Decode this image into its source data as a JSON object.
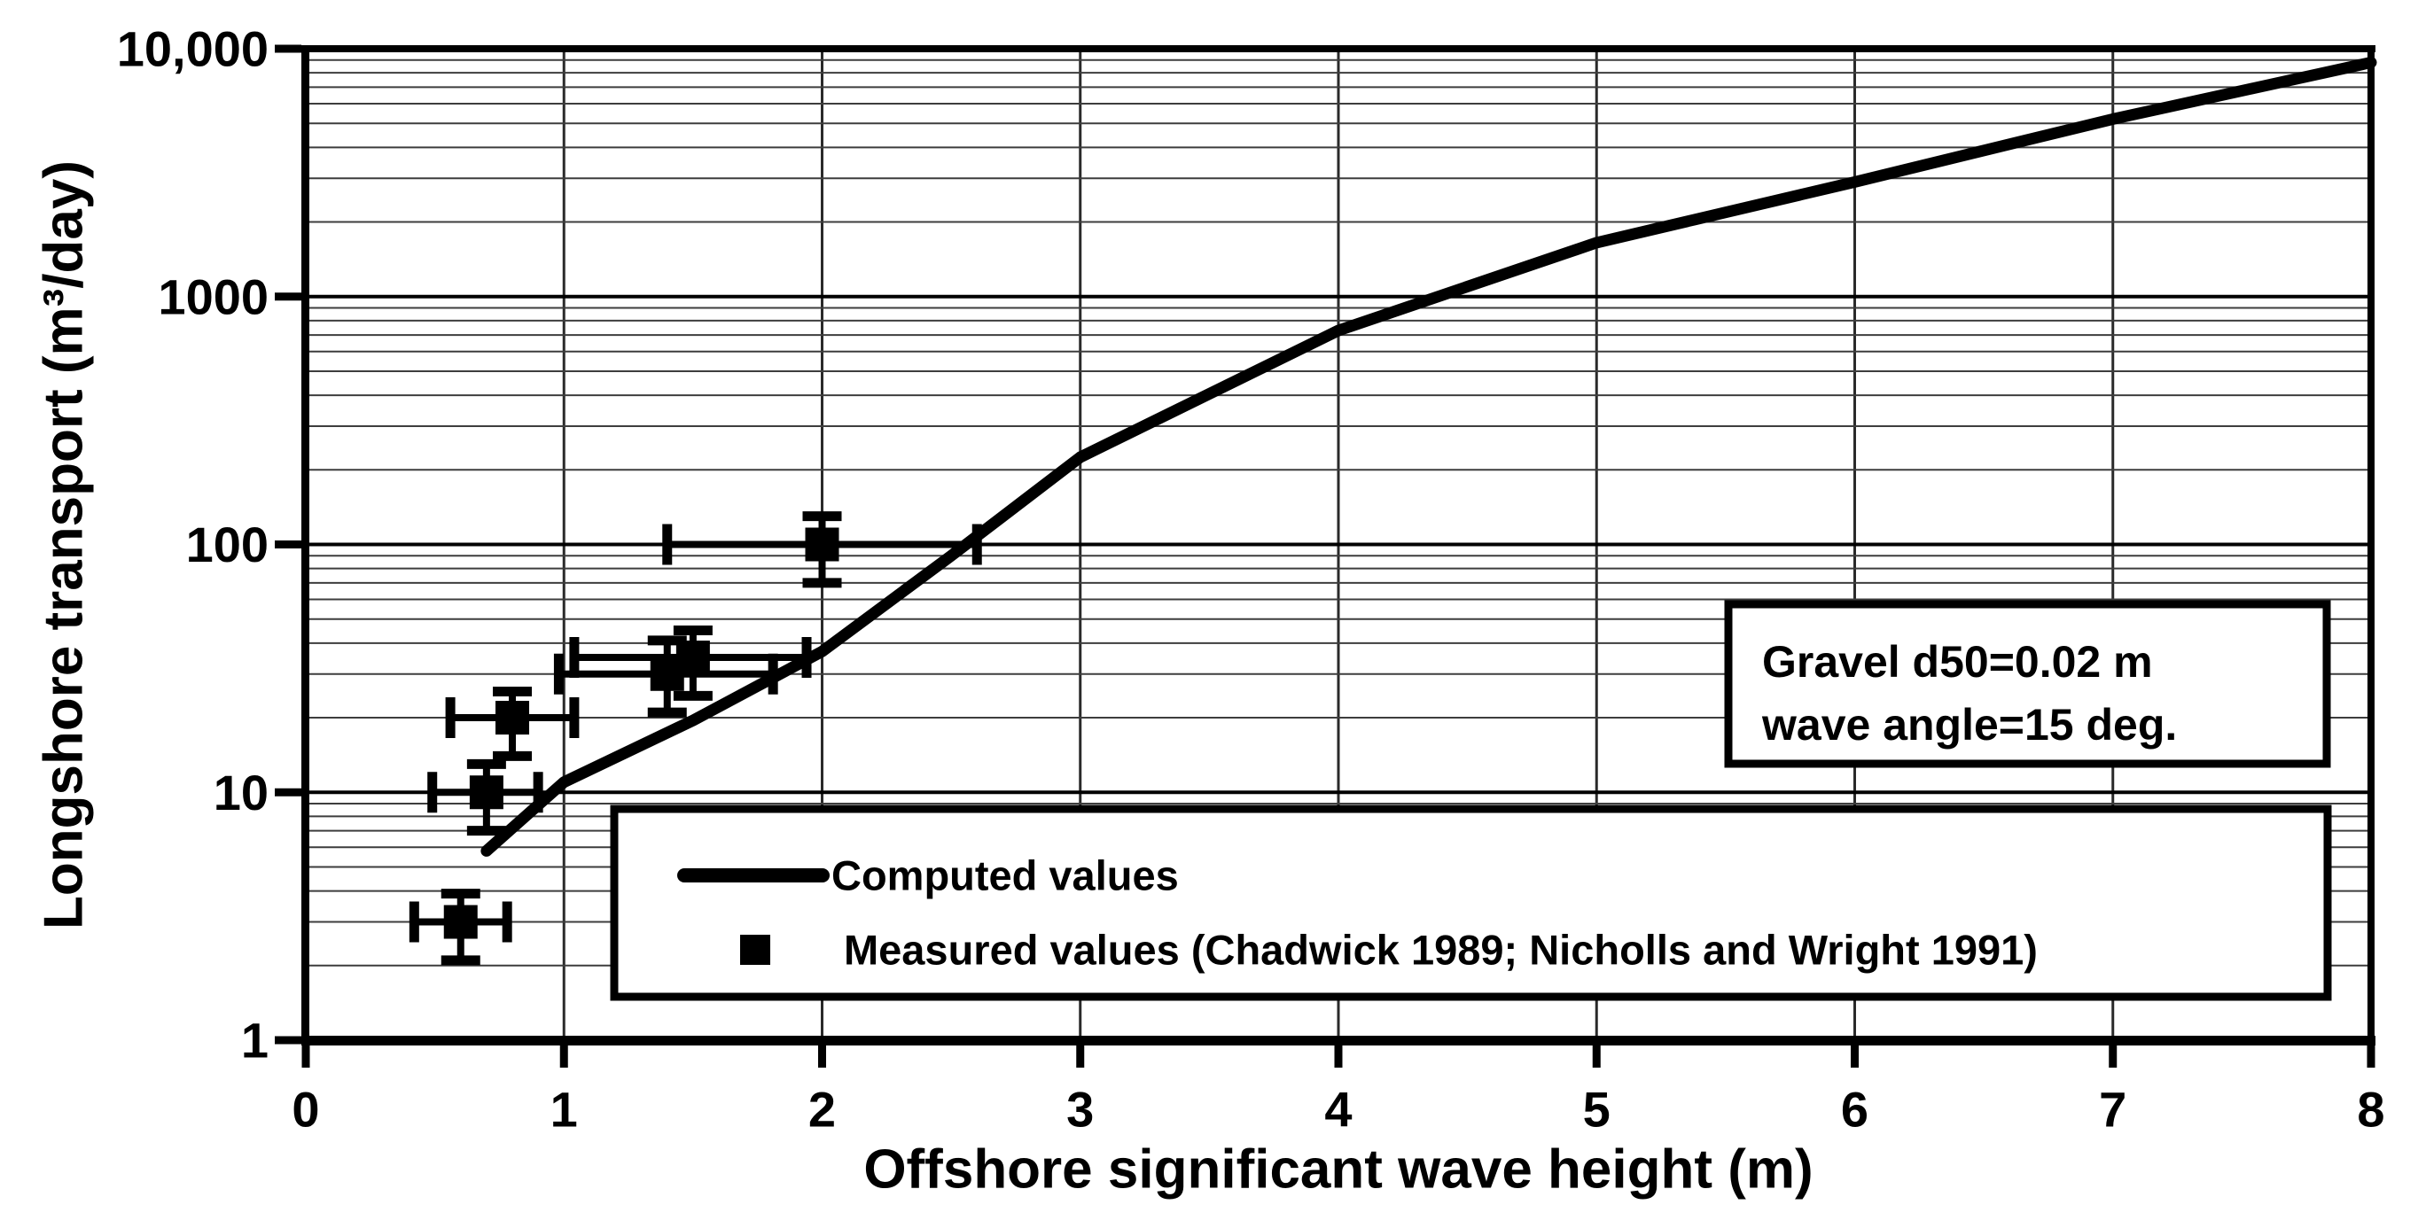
{
  "figure": {
    "background": "#ffffff",
    "ink_color": "#000000",
    "minor_grid_color": "#3d3d3d",
    "major_grid_color": "#000000",
    "vertical_grid_color": "#2a2a2a"
  },
  "chart_data": {
    "type": "line",
    "title": "",
    "xlabel": "Offshore significant wave height (m)",
    "ylabel": "Longshore transport (m³/day)",
    "x_axis": {
      "scale": "linear",
      "min": 0,
      "max": 8,
      "ticks": [
        0,
        1,
        2,
        3,
        4,
        5,
        6,
        7,
        8
      ],
      "tick_labels": [
        "0",
        "1",
        "2",
        "3",
        "4",
        "5",
        "6",
        "7",
        "8"
      ]
    },
    "y_axis": {
      "scale": "log",
      "min": 1,
      "max": 10000,
      "ticks": [
        1,
        10,
        100,
        1000,
        10000
      ],
      "tick_labels": [
        "1",
        "10",
        "100",
        "1000",
        "10,000"
      ],
      "minor_gridlines": "log multiples 2-9 each decade"
    },
    "grid": {
      "x_major": true,
      "y_major": true,
      "y_minor": true
    },
    "series": [
      {
        "name": "Computed values",
        "type": "line",
        "points": [
          [
            0.7,
            5.8
          ],
          [
            1.0,
            11
          ],
          [
            1.5,
            19.5
          ],
          [
            2.0,
            37
          ],
          [
            2.5,
            90
          ],
          [
            3.0,
            225
          ],
          [
            4.0,
            730
          ],
          [
            5.0,
            1650
          ],
          [
            6.0,
            2900
          ],
          [
            7.0,
            5200
          ],
          [
            8.0,
            8800
          ]
        ]
      },
      {
        "name": "Measured values (Chadwick 1989; Nicholls and Wright 1991)",
        "type": "scatter",
        "marker": "filled-square",
        "points": [
          {
            "x": 0.6,
            "y": 3,
            "xlo": 0.42,
            "xhi": 0.78,
            "ylo": 2.1,
            "yhi": 3.9
          },
          {
            "x": 0.7,
            "y": 10,
            "xlo": 0.49,
            "xhi": 0.9,
            "ylo": 7,
            "yhi": 13
          },
          {
            "x": 0.8,
            "y": 20,
            "xlo": 0.56,
            "xhi": 1.04,
            "ylo": 14,
            "yhi": 25.5
          },
          {
            "x": 1.4,
            "y": 30,
            "xlo": 0.98,
            "xhi": 1.81,
            "ylo": 21,
            "yhi": 41
          },
          {
            "x": 1.5,
            "y": 35,
            "xlo": 1.04,
            "xhi": 1.94,
            "ylo": 24.5,
            "yhi": 45
          },
          {
            "x": 2.0,
            "y": 100,
            "xlo": 1.4,
            "xhi": 2.6,
            "ylo": 70,
            "yhi": 130
          }
        ]
      }
    ],
    "legend": {
      "position": "inside-bottom-center",
      "entries": [
        "Computed values",
        "Measured values (Chadwick 1989; Nicholls and Wright 1991)"
      ]
    },
    "annotation": {
      "lines": [
        "Gravel d50=0.02 m",
        "wave angle=15 deg."
      ]
    }
  }
}
